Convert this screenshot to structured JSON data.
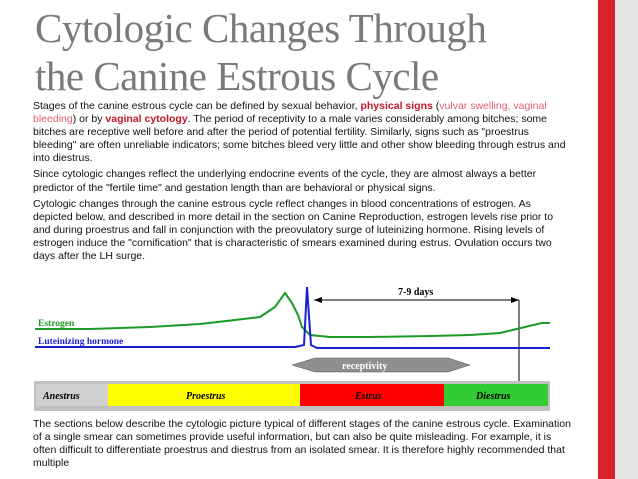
{
  "title": {
    "line1": "Cytologic Changes Through",
    "line2": "the Canine Estrous Cycle"
  },
  "colors": {
    "accent_red": "#d8232a",
    "accent_gray": "#e5e5e5",
    "estrogen_green": "#1b9a2a",
    "lh_blue": "#1a1fd0"
  },
  "paragraph1": {
    "part1": "Stages of the canine estrous cycle can be defined by sexual behavior, ",
    "physical_signs": "physical signs",
    "part2": " (",
    "vulvar": "vulvar swelling, vaginal bleeding",
    "part3": ") or by ",
    "vaginal_cytology": "vaginal cytology",
    "part4": ". The period of receptivity to a male varies considerably among bitches; some bitches are receptive well before and after the period of potential fertility. Similarly, signs such as \"proestrus bleeding\" are often unreliable indicators; some bitches bleed very little and other show bleeding through estrus and into diestrus."
  },
  "paragraph2": "Since cytologic changes reflect the underlying endocrine events of the cycle, they are almost always a better predictor of the \"fertile time\" and gestation length than are behavioral or physical signs.",
  "paragraph3": "Cytologic changes through the canine estrous cycle reflect changes in blood concentrations of estrogen. As depicted below, and described in more detail in the section on Canine Reproduction, estrogen levels rise prior to and during proestrus and fall in conjunction with the preovulatory surge of luteinizing hormone. Rising levels of estrogen induce the \"cornification\" that is characteristic of smears examined during estrus. Ovulation occurs two days after the LH surge.",
  "figure": {
    "days_label": "7-9 days",
    "estrogen_label": "Estrogen",
    "lh_label": "Luteinizing hormone",
    "receptivity_label": "receptivity",
    "stages": [
      {
        "label": "Anestrus",
        "color": "#d0d0d0"
      },
      {
        "label": "Proestrus",
        "color": "#ffff00"
      },
      {
        "label": "Estrus",
        "color": "#ff0000"
      },
      {
        "label": "Diestrus",
        "color": "#33cc33"
      }
    ]
  },
  "paragraph4": "The sections below describe the cytologic picture typical of different stages of the canine estrous cycle. Examination of a single smear can sometimes provide useful information, but can also be quite misleading. For example, it is often difficult to differentiate proestrus and diestrus from an isolated smear. It is therefore highly recommended that multiple"
}
